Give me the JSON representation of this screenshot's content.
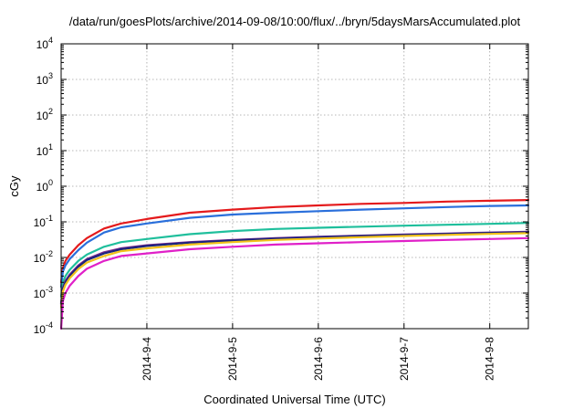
{
  "chart_data": {
    "type": "line",
    "title": "/data/run/goesPlots/archive/2014-09-08/10:00/flux/../bryn/5daysMarsAccumulated.plot",
    "xlabel": "Coordinated Universal Time (UTC)",
    "ylabel": "cGy",
    "y_scale": "log",
    "ylim": [
      0.0001,
      10000
    ],
    "xlim": [
      0,
      5.45
    ],
    "x_unit": "days since 2014-09-03 00:00 UTC",
    "grid": true,
    "legend": "none",
    "x_ticks": [
      {
        "x": 1,
        "label": "2014-9-4"
      },
      {
        "x": 2,
        "label": "2014-9-5"
      },
      {
        "x": 3,
        "label": "2014-9-6"
      },
      {
        "x": 4,
        "label": "2014-9-7"
      },
      {
        "x": 5,
        "label": "2014-9-8"
      }
    ],
    "y_ticks": [
      {
        "value": 0.0001,
        "base": "10",
        "exp": "-4"
      },
      {
        "value": 0.001,
        "base": "10",
        "exp": "-3"
      },
      {
        "value": 0.01,
        "base": "10",
        "exp": "-2"
      },
      {
        "value": 0.1,
        "base": "10",
        "exp": "-1"
      },
      {
        "value": 1,
        "base": "10",
        "exp": "0"
      },
      {
        "value": 10,
        "base": "10",
        "exp": "1"
      },
      {
        "value": 100,
        "base": "10",
        "exp": "2"
      },
      {
        "value": 1000,
        "base": "10",
        "exp": "3"
      },
      {
        "value": 10000,
        "base": "10",
        "exp": "4"
      }
    ],
    "x": [
      0.0,
      0.02,
      0.05,
      0.1,
      0.2,
      0.3,
      0.5,
      0.7,
      1.0,
      1.5,
      2.0,
      2.5,
      3.0,
      3.5,
      4.0,
      4.5,
      5.0,
      5.45
    ],
    "series": [
      {
        "color": "#e41a1c",
        "values": [
          0.002,
          0.005,
          0.008,
          0.012,
          0.022,
          0.035,
          0.065,
          0.09,
          0.12,
          0.18,
          0.22,
          0.26,
          0.29,
          0.32,
          0.34,
          0.37,
          0.39,
          0.41
        ]
      },
      {
        "color": "#2a6fdb",
        "values": [
          0.0015,
          0.004,
          0.006,
          0.009,
          0.016,
          0.026,
          0.05,
          0.07,
          0.09,
          0.13,
          0.16,
          0.18,
          0.2,
          0.22,
          0.24,
          0.26,
          0.28,
          0.29
        ]
      },
      {
        "color": "#1fbf9c",
        "values": [
          0.0008,
          0.002,
          0.003,
          0.0045,
          0.008,
          0.012,
          0.02,
          0.027,
          0.033,
          0.045,
          0.055,
          0.063,
          0.068,
          0.073,
          0.078,
          0.083,
          0.088,
          0.093
        ]
      },
      {
        "color": "#7b2c8f",
        "values": [
          0.0005,
          0.0014,
          0.0022,
          0.0033,
          0.006,
          0.009,
          0.014,
          0.018,
          0.022,
          0.027,
          0.031,
          0.035,
          0.038,
          0.041,
          0.044,
          0.047,
          0.05,
          0.053
        ]
      },
      {
        "color": "#1a237e",
        "values": [
          0.0005,
          0.0013,
          0.002,
          0.003,
          0.0055,
          0.0085,
          0.013,
          0.017,
          0.021,
          0.026,
          0.03,
          0.034,
          0.037,
          0.04,
          0.043,
          0.046,
          0.049,
          0.051
        ]
      },
      {
        "color": "#f2c21a",
        "values": [
          0.0004,
          0.0011,
          0.0017,
          0.0026,
          0.0047,
          0.0072,
          0.011,
          0.015,
          0.018,
          0.023,
          0.027,
          0.031,
          0.034,
          0.037,
          0.04,
          0.043,
          0.046,
          0.048
        ]
      },
      {
        "color": "#e020c8",
        "values": [
          0.0001,
          0.0006,
          0.001,
          0.0016,
          0.003,
          0.0048,
          0.008,
          0.011,
          0.013,
          0.017,
          0.02,
          0.023,
          0.025,
          0.027,
          0.029,
          0.031,
          0.033,
          0.035
        ]
      }
    ]
  }
}
